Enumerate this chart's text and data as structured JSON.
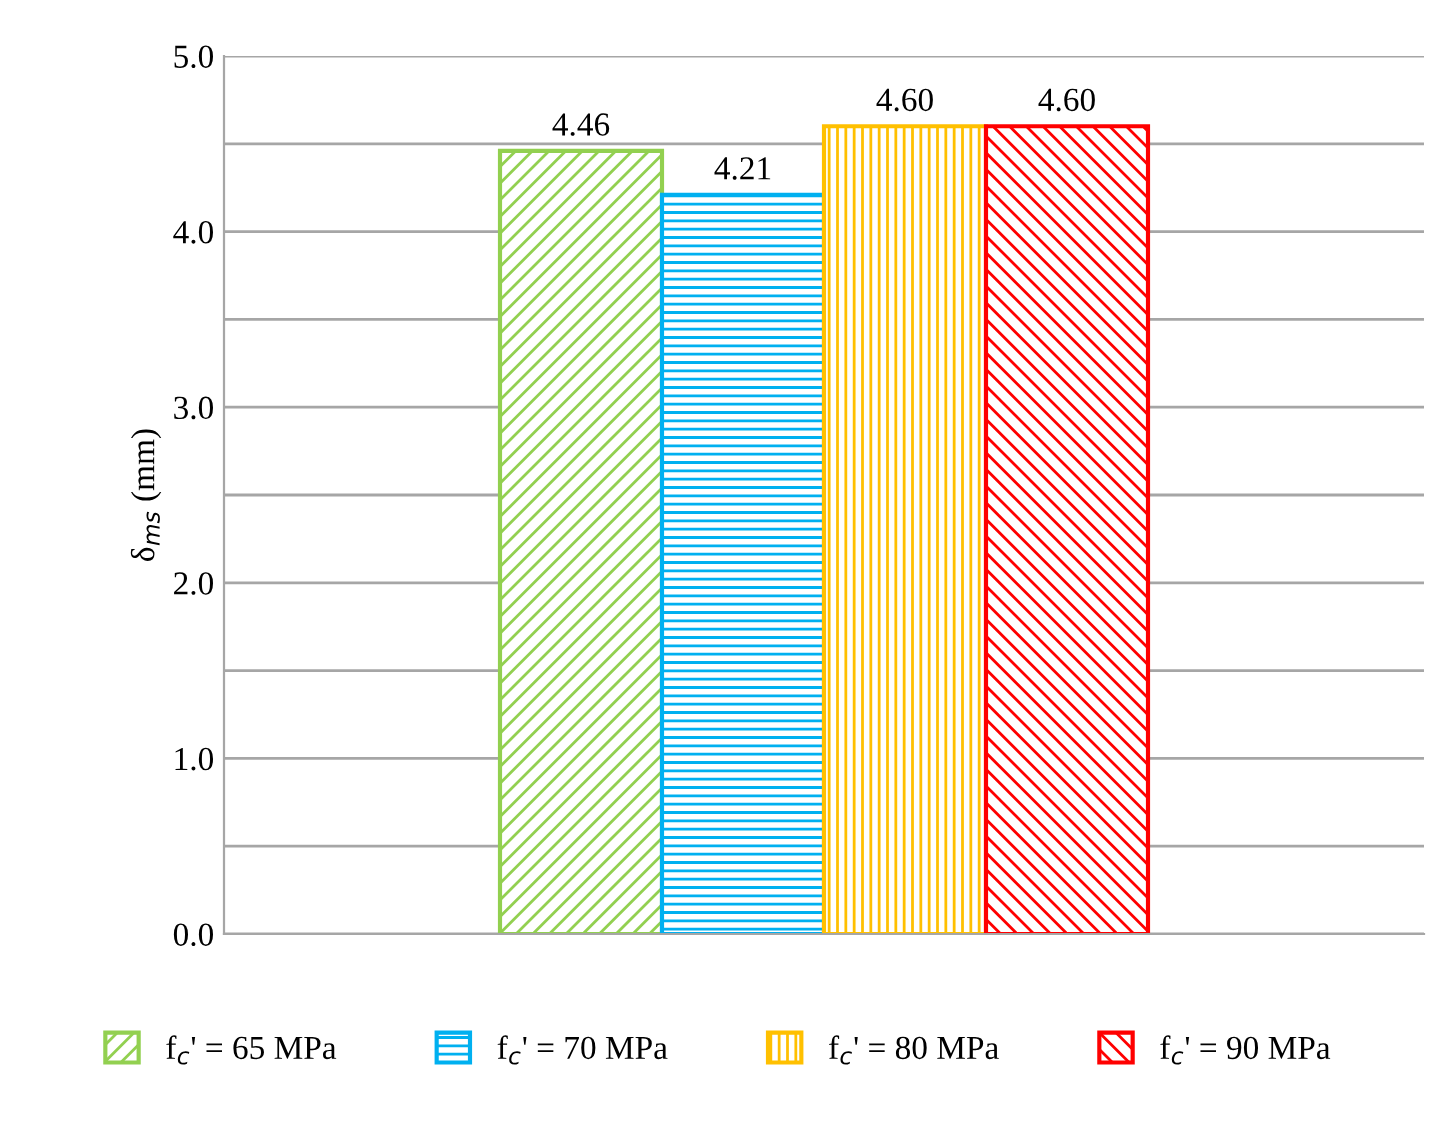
{
  "chart_data": {
    "type": "bar",
    "ylabel": "δ$_{ms}$ (mm)",
    "categories": [
      null
    ],
    "series": [
      {
        "name": "f$_{c}$' = 65 MPa",
        "color": "#92d050",
        "values": [
          4.46
        ],
        "value_labels": [
          "4.46"
        ]
      },
      {
        "name": "f$_{c}$' = 70 MPa",
        "color": "#00b0f0",
        "values": [
          4.21
        ],
        "value_labels": [
          "4.21"
        ]
      },
      {
        "name": "f$_{c}$' = 80 MPa",
        "color": "#ffc000",
        "values": [
          4.6
        ],
        "value_labels": [
          "4.60"
        ]
      },
      {
        "name": "f$_{c}$' = 90 MPa",
        "color": "#ff0000",
        "values": [
          4.6
        ],
        "value_labels": [
          "4.60"
        ]
      }
    ],
    "ylim": [
      0,
      5
    ],
    "yticks": [
      {
        "value": 0,
        "label": "0.0"
      },
      {
        "value": 0.5,
        "label": null
      },
      {
        "value": 1,
        "label": "1.0"
      },
      {
        "value": 1.5,
        "label": null
      },
      {
        "value": 2,
        "label": "2.0"
      },
      {
        "value": 2.5,
        "label": null
      },
      {
        "value": 3,
        "label": "3.0"
      },
      {
        "value": 3.5,
        "label": null
      },
      {
        "value": 4,
        "label": "4.0"
      },
      {
        "value": 4.5,
        "label": null
      },
      {
        "value": 5,
        "label": "5.0"
      }
    ],
    "grid": "y",
    "legend": "bottom",
    "tick_labels": "y"
  }
}
